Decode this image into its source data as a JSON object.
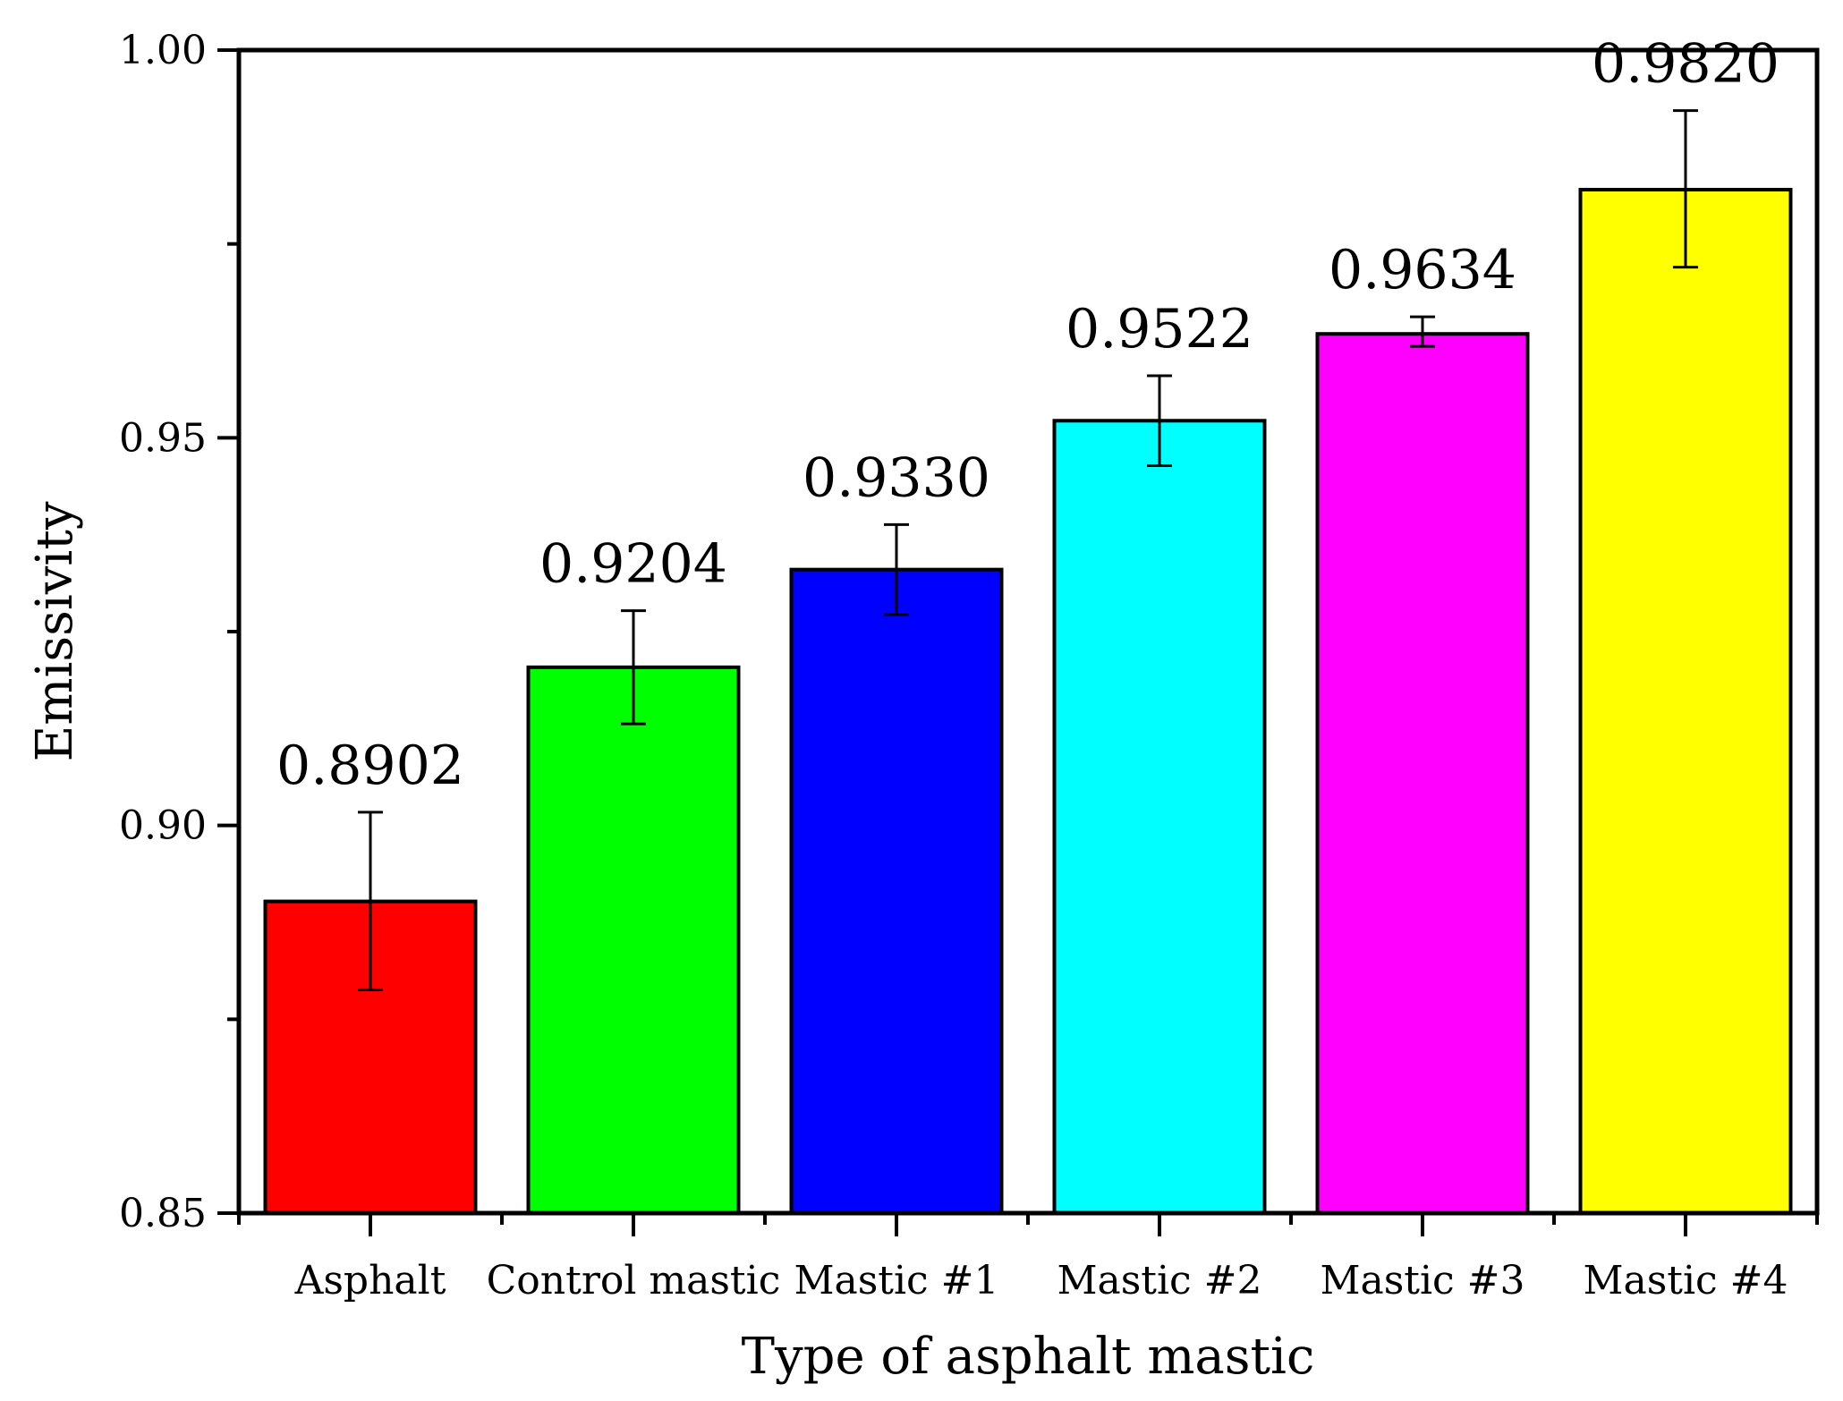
{
  "chart_data": {
    "type": "bar",
    "title": "",
    "xlabel": "Type of asphalt mastic",
    "ylabel": "Emissivity",
    "ylim": [
      0.85,
      1.0
    ],
    "yticks": [
      0.85,
      0.9,
      0.95,
      1.0
    ],
    "ytick_labels": [
      "0.85",
      "0.90",
      "0.95",
      "1.00"
    ],
    "grid": false,
    "legend": "none",
    "categories": [
      "Asphalt",
      "Control mastic",
      "Mastic #1",
      "Mastic #2",
      "Mastic #3",
      "Mastic #4"
    ],
    "values": [
      0.8902,
      0.9204,
      0.933,
      0.9522,
      0.9634,
      0.982
    ],
    "value_labels": [
      "0.8902",
      "0.9204",
      "0.9330",
      "0.9522",
      "0.9634",
      "0.9820"
    ],
    "error_low": [
      0.8788,
      0.9131,
      0.9272,
      0.9464,
      0.9618,
      0.972
    ],
    "error_high": [
      0.9017,
      0.9277,
      0.9388,
      0.958,
      0.9656,
      0.9922
    ],
    "colors": [
      "#ff0000",
      "#00ff00",
      "#0000ff",
      "#00ffff",
      "#ff00ff",
      "#ffff00"
    ]
  }
}
